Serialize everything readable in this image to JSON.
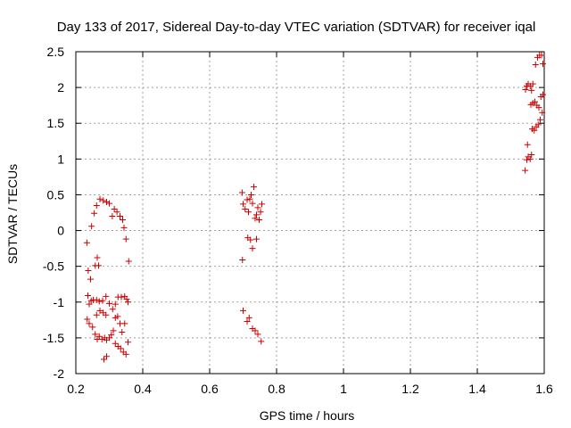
{
  "chart_data": {
    "type": "scatter",
    "title": "Day 133 of 2017, Sidereal Day-to-day VTEC variation (SDTVAR) for receiver iqal",
    "xlabel": "GPS time / hours",
    "ylabel": "SDTVAR / TECUs",
    "xlim": [
      0.2,
      1.6
    ],
    "ylim": [
      -2,
      2.5
    ],
    "xticks": [
      0.2,
      0.4,
      0.6,
      0.8,
      1.0,
      1.2,
      1.4,
      1.6
    ],
    "xtick_labels": [
      "0.2",
      "0.4",
      "0.6",
      "0.8",
      "1",
      "1.2",
      "1.4",
      "1.6"
    ],
    "yticks": [
      -2,
      -1.5,
      -1,
      -0.5,
      0,
      0.5,
      1,
      1.5,
      2,
      2.5
    ],
    "ytick_labels": [
      "-2",
      "-1.5",
      "-1",
      "-0.5",
      "0",
      "0.5",
      "1",
      "1.5",
      "2",
      "2.5"
    ],
    "grid": true,
    "marker": "+",
    "marker_color": "#cc0000",
    "series": [
      {
        "name": "SDTVAR",
        "points": [
          [
            0.233,
            -0.17
          ],
          [
            0.237,
            -0.56
          ],
          [
            0.244,
            -0.68
          ],
          [
            0.247,
            0.06
          ],
          [
            0.255,
            0.24
          ],
          [
            0.262,
            0.35
          ],
          [
            0.264,
            -0.38
          ],
          [
            0.258,
            -0.49
          ],
          [
            0.268,
            -0.49
          ],
          [
            0.272,
            0.44
          ],
          [
            0.282,
            0.42
          ],
          [
            0.292,
            0.4
          ],
          [
            0.3,
            0.38
          ],
          [
            0.309,
            0.2
          ],
          [
            0.315,
            0.3
          ],
          [
            0.323,
            0.26
          ],
          [
            0.332,
            0.2
          ],
          [
            0.34,
            0.15
          ],
          [
            0.344,
            0.04
          ],
          [
            0.35,
            -0.12
          ],
          [
            0.358,
            -0.43
          ],
          [
            0.236,
            -0.91
          ],
          [
            0.24,
            -1.03
          ],
          [
            0.246,
            -0.98
          ],
          [
            0.252,
            -0.97
          ],
          [
            0.262,
            -0.97
          ],
          [
            0.27,
            -0.99
          ],
          [
            0.28,
            -0.98
          ],
          [
            0.29,
            -0.92
          ],
          [
            0.3,
            -1.02
          ],
          [
            0.31,
            -1.1
          ],
          [
            0.318,
            -1.03
          ],
          [
            0.326,
            -0.93
          ],
          [
            0.336,
            -0.93
          ],
          [
            0.346,
            -0.92
          ],
          [
            0.352,
            -0.96
          ],
          [
            0.356,
            -1.0
          ],
          [
            0.234,
            -1.24
          ],
          [
            0.24,
            -1.3
          ],
          [
            0.25,
            -1.35
          ],
          [
            0.258,
            -1.45
          ],
          [
            0.264,
            -1.52
          ],
          [
            0.27,
            -1.48
          ],
          [
            0.278,
            -1.52
          ],
          [
            0.286,
            -1.5
          ],
          [
            0.292,
            -1.53
          ],
          [
            0.3,
            -1.5
          ],
          [
            0.306,
            -1.46
          ],
          [
            0.312,
            -1.4
          ],
          [
            0.318,
            -1.22
          ],
          [
            0.325,
            -1.2
          ],
          [
            0.332,
            -1.3
          ],
          [
            0.338,
            -1.42
          ],
          [
            0.346,
            -1.3
          ],
          [
            0.356,
            -1.56
          ],
          [
            0.262,
            -1.18
          ],
          [
            0.272,
            -1.12
          ],
          [
            0.282,
            -1.15
          ],
          [
            0.29,
            -1.18
          ],
          [
            0.318,
            -1.58
          ],
          [
            0.326,
            -1.62
          ],
          [
            0.334,
            -1.65
          ],
          [
            0.342,
            -1.7
          ],
          [
            0.35,
            -1.73
          ],
          [
            0.284,
            -1.8
          ],
          [
            0.292,
            -1.76
          ],
          [
            0.697,
            0.53
          ],
          [
            0.7,
            0.37
          ],
          [
            0.706,
            0.3
          ],
          [
            0.712,
            0.43
          ],
          [
            0.716,
            0.26
          ],
          [
            0.72,
            0.44
          ],
          [
            0.724,
            0.5
          ],
          [
            0.728,
            0.38
          ],
          [
            0.732,
            0.61
          ],
          [
            0.736,
            0.17
          ],
          [
            0.74,
            0.22
          ],
          [
            0.744,
            0.32
          ],
          [
            0.748,
            0.15
          ],
          [
            0.752,
            0.26
          ],
          [
            0.756,
            0.37
          ],
          [
            0.714,
            -0.1
          ],
          [
            0.722,
            -0.13
          ],
          [
            0.728,
            -0.25
          ],
          [
            0.74,
            -0.12
          ],
          [
            0.698,
            -0.41
          ],
          [
            0.7,
            -1.12
          ],
          [
            0.712,
            -1.27
          ],
          [
            0.718,
            -1.22
          ],
          [
            0.728,
            -1.37
          ],
          [
            0.736,
            -1.4
          ],
          [
            0.744,
            -1.45
          ],
          [
            0.754,
            -1.55
          ],
          [
            1.543,
            0.84
          ],
          [
            1.548,
            0.99
          ],
          [
            1.552,
            1.03
          ],
          [
            1.558,
            1.0
          ],
          [
            1.562,
            1.06
          ],
          [
            1.55,
            1.2
          ],
          [
            1.564,
            1.42
          ],
          [
            1.57,
            1.4
          ],
          [
            1.576,
            1.45
          ],
          [
            1.582,
            1.48
          ],
          [
            1.588,
            1.55
          ],
          [
            1.594,
            1.65
          ],
          [
            1.56,
            1.76
          ],
          [
            1.566,
            1.78
          ],
          [
            1.572,
            1.8
          ],
          [
            1.578,
            1.75
          ],
          [
            1.584,
            1.72
          ],
          [
            1.59,
            1.87
          ],
          [
            1.596,
            1.9
          ],
          [
            1.544,
            1.97
          ],
          [
            1.548,
            2.02
          ],
          [
            1.552,
            2.05
          ],
          [
            1.558,
            2.02
          ],
          [
            1.562,
            1.96
          ],
          [
            1.566,
            2.05
          ],
          [
            1.574,
            2.32
          ],
          [
            1.58,
            2.42
          ],
          [
            1.586,
            2.45
          ],
          [
            1.592,
            2.45
          ],
          [
            1.596,
            2.33
          ]
        ]
      }
    ]
  }
}
